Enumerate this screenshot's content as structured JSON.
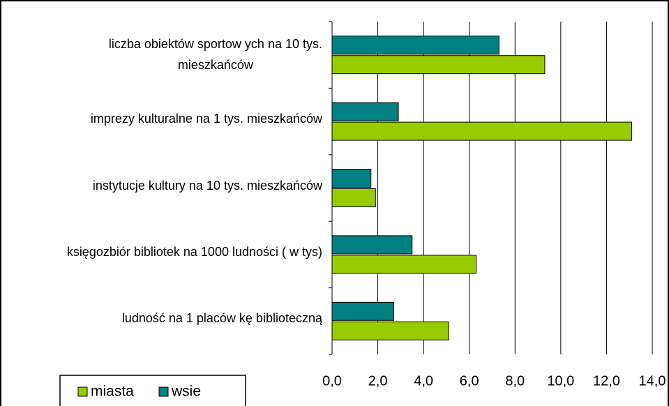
{
  "chart_data": {
    "type": "bar",
    "orientation": "horizontal",
    "categories": [
      "liczba obiektów  sportow ych na 10 tys.\nmieszkańców",
      "imprezy kulturalne na 1 tys. mieszkańców",
      "instytucje kultury na 10 tys. mieszkańców",
      "księgozbiór bibliotek na 1000 ludności ( w  tys)",
      "ludność na 1 placów kę biblioteczną"
    ],
    "series": [
      {
        "name": "miasta",
        "color": "#99cc00",
        "values": [
          9.3,
          13.1,
          1.9,
          6.3,
          5.1
        ]
      },
      {
        "name": "wsie",
        "color": "#008080",
        "values": [
          7.3,
          2.9,
          1.7,
          3.5,
          2.7
        ]
      }
    ],
    "xlim": [
      0,
      14
    ],
    "xticks": [
      {
        "value": 0,
        "label": "0,0"
      },
      {
        "value": 2,
        "label": "2,0"
      },
      {
        "value": 4,
        "label": "4,0"
      },
      {
        "value": 6,
        "label": "6,0"
      },
      {
        "value": 8,
        "label": "8,0"
      },
      {
        "value": 10,
        "label": "10,0"
      },
      {
        "value": 12,
        "label": "12,0"
      },
      {
        "value": 14,
        "label": "14,0"
      }
    ],
    "grid": true,
    "legend": "bottom-left"
  }
}
